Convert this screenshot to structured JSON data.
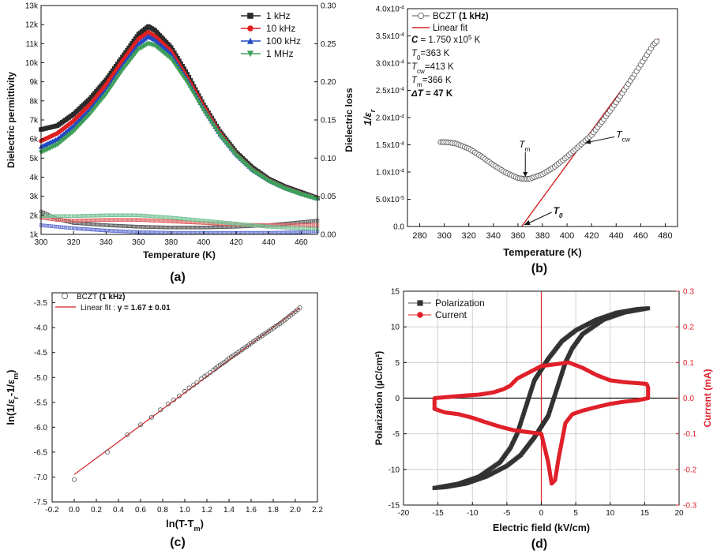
{
  "chart_data": [
    {
      "id": "a",
      "type": "line",
      "panel_label": "(a)",
      "xlabel": "Temperature (K)",
      "ylabel": "Dielectric permittivity",
      "y2label": "Dielectric loss",
      "xlim": [
        300,
        470
      ],
      "ylim": [
        1000,
        13000
      ],
      "y2lim": [
        0,
        0.3
      ],
      "xticks": [
        "300",
        "320",
        "340",
        "360",
        "380",
        "400",
        "420",
        "440",
        "460"
      ],
      "yticks": [
        "1k",
        "2k",
        "3k",
        "4k",
        "5k",
        "6k",
        "7k",
        "8k",
        "9k",
        "10k",
        "11k",
        "12k",
        "13k"
      ],
      "y2ticks": [
        "0.00",
        "0.05",
        "0.10",
        "0.15",
        "0.20",
        "0.25",
        "0.30"
      ],
      "legend_position": "top-right",
      "permittivity_series": [
        {
          "name": "1 kHz",
          "color": "#2b2b2b",
          "marker": "square",
          "x": [
            300,
            310,
            320,
            330,
            340,
            350,
            360,
            366,
            370,
            380,
            390,
            400,
            410,
            420,
            430,
            440,
            450,
            460,
            470
          ],
          "values": [
            6500,
            6700,
            7300,
            8100,
            9100,
            10300,
            11500,
            11900,
            11700,
            10800,
            9400,
            7800,
            6400,
            5300,
            4500,
            3900,
            3500,
            3200,
            2900
          ]
        },
        {
          "name": "10 kHz",
          "color": "#e02020",
          "marker": "circle",
          "x": [
            300,
            310,
            320,
            330,
            340,
            350,
            360,
            366,
            370,
            380,
            390,
            400,
            410,
            420,
            430,
            440,
            450,
            460,
            470
          ],
          "values": [
            5900,
            6300,
            6950,
            7800,
            8850,
            10100,
            11250,
            11600,
            11400,
            10600,
            9200,
            7700,
            6300,
            5200,
            4400,
            3850,
            3450,
            3150,
            2900
          ]
        },
        {
          "name": "100 kHz",
          "color": "#2148c4",
          "marker": "triangle-up",
          "x": [
            300,
            310,
            320,
            330,
            340,
            350,
            360,
            366,
            370,
            380,
            390,
            400,
            410,
            420,
            430,
            440,
            450,
            460,
            470
          ],
          "values": [
            5600,
            6000,
            6700,
            7550,
            8600,
            9850,
            11000,
            11400,
            11200,
            10450,
            9100,
            7600,
            6250,
            5200,
            4400,
            3850,
            3450,
            3150,
            2900
          ]
        },
        {
          "name": "1 MHz",
          "color": "#3fa05a",
          "marker": "triangle-down",
          "x": [
            300,
            310,
            320,
            330,
            340,
            350,
            360,
            366,
            370,
            380,
            390,
            400,
            410,
            420,
            430,
            440,
            450,
            460,
            470
          ],
          "values": [
            5300,
            5700,
            6400,
            7300,
            8350,
            9600,
            10700,
            11000,
            10900,
            10200,
            8950,
            7500,
            6200,
            5150,
            4350,
            3800,
            3400,
            3100,
            2850
          ]
        }
      ],
      "loss_series": [
        {
          "name": "1 kHz",
          "color": "#555555",
          "x": [
            300,
            310,
            320,
            340,
            360,
            380,
            400,
            420,
            440,
            460,
            470
          ],
          "values": [
            0.03,
            0.02,
            0.015,
            0.012,
            0.01,
            0.009,
            0.009,
            0.01,
            0.012,
            0.016,
            0.018
          ]
        },
        {
          "name": "10 kHz",
          "color": "#e06060",
          "x": [
            300,
            310,
            320,
            340,
            360,
            380,
            400,
            420,
            440,
            460,
            470
          ],
          "values": [
            0.022,
            0.019,
            0.018,
            0.019,
            0.019,
            0.017,
            0.015,
            0.013,
            0.012,
            0.012,
            0.012
          ]
        },
        {
          "name": "100 kHz",
          "color": "#6070d0",
          "x": [
            300,
            310,
            320,
            340,
            360,
            380,
            400,
            420,
            440,
            460,
            470
          ],
          "values": [
            0.012,
            0.01,
            0.008,
            0.005,
            0.003,
            0.002,
            0.002,
            0.002,
            0.002,
            0.003,
            0.004
          ]
        },
        {
          "name": "1 MHz",
          "color": "#70c090",
          "x": [
            300,
            310,
            320,
            340,
            360,
            380,
            400,
            420,
            440,
            460,
            470
          ],
          "values": [
            0.024,
            0.024,
            0.024,
            0.025,
            0.025,
            0.022,
            0.018,
            0.014,
            0.01,
            0.008,
            0.007
          ]
        }
      ]
    },
    {
      "id": "b",
      "type": "scatter",
      "panel_label": "(b)",
      "xlabel": "Temperature (K)",
      "ylabel": "1/ε",
      "ylabel_sub": "r",
      "xlim": [
        270,
        490
      ],
      "ylim": [
        0,
        0.0004
      ],
      "xticks": [
        "280",
        "300",
        "320",
        "340",
        "360",
        "380",
        "400",
        "420",
        "440",
        "460",
        "480"
      ],
      "yticks": [
        "0.0",
        "5.0x10",
        "1.0x10",
        "1.5x10",
        "2.0x10",
        "2.5x10",
        "3.0x10",
        "3.5x10",
        "4.0x10"
      ],
      "ytick_exps": [
        "",
        "-5",
        "-4",
        "-4",
        "-4",
        "-4",
        "-4",
        "-4",
        "-4"
      ],
      "legend": [
        "BCZT (1 kHz)",
        "Linear fit"
      ],
      "params": [
        {
          "label": "C",
          "value": " = 1.750 x10",
          "exp": "5",
          "unit": " K"
        },
        {
          "label": "T",
          "sub": "0",
          "value": "=363 K"
        },
        {
          "label": "T",
          "sub": "cw",
          "value": "=413 K"
        },
        {
          "label": "T",
          "sub": "m",
          "value": "=366 K"
        },
        {
          "label": "ΔT",
          "value": " = 47 K"
        }
      ],
      "annotations": [
        {
          "text": "T",
          "sub": "m",
          "x": 366,
          "y": 8.7e-05
        },
        {
          "text": "T",
          "sub": "cw",
          "x": 413,
          "y": 0.000156
        },
        {
          "text": "T",
          "sub": "0",
          "x": 363,
          "y": 0
        }
      ],
      "data_series": {
        "name": "BCZT (1 kHz)",
        "color": "#555555",
        "x": [
          297,
          300,
          305,
          310,
          320,
          330,
          340,
          350,
          360,
          366,
          370,
          380,
          390,
          400,
          410,
          420,
          430,
          440,
          450,
          460,
          470,
          473
        ],
        "values": [
          0.000155,
          0.000155,
          0.000154,
          0.000152,
          0.000143,
          0.000129,
          0.000113,
          9.9e-05,
          8.9e-05,
          8.7e-05,
          8.8e-05,
          9.6e-05,
          0.00011,
          0.000128,
          0.000148,
          0.000168,
          0.000197,
          0.000228,
          0.000262,
          0.000297,
          0.000333,
          0.00034
        ]
      },
      "fit_series": {
        "name": "Linear fit",
        "color": "#d42020",
        "x": [
          363,
          475
        ],
        "values": [
          0,
          0.000345
        ]
      }
    },
    {
      "id": "c",
      "type": "scatter",
      "panel_label": "(c)",
      "xlabel": "ln(T-T",
      "xlabel_sub": "m",
      "xlabel_end": ")",
      "ylabel": "ln(1/ε",
      "ylabel_sub1": "r",
      "ylabel_mid": "-1/ε",
      "ylabel_sub2": "m",
      "ylabel_end": ")",
      "xlim": [
        -0.2,
        2.2
      ],
      "ylim": [
        -7.5,
        -3.3
      ],
      "xticks": [
        "-0.2",
        "0.0",
        "0.2",
        "0.4",
        "0.6",
        "0.8",
        "1.0",
        "1.2",
        "1.4",
        "1.6",
        "1.8",
        "2.0",
        "2.2"
      ],
      "yticks": [
        "-7.5",
        "-7.0",
        "-6.5",
        "-6.0",
        "-5.5",
        "-5.0",
        "-4.5",
        "-4.0",
        "-3.5"
      ],
      "legend": [
        "BCZT (1 kHz)",
        "Linear fit : γ = 1.67 ± 0.01"
      ],
      "legend_position": "top-left",
      "data_series": {
        "name": "BCZT (1 kHz)",
        "color": "#555555",
        "x": [
          0.0,
          0.3,
          0.48,
          0.6,
          0.7,
          0.78,
          0.85,
          0.9,
          0.95,
          1.0,
          1.04,
          1.08,
          1.11,
          1.15,
          1.18,
          1.2,
          1.23,
          1.26,
          1.28,
          1.3,
          1.32,
          1.34,
          1.36,
          1.38,
          1.4,
          1.42,
          1.44,
          1.46,
          1.48,
          1.5,
          1.52,
          1.54,
          1.56,
          1.58,
          1.6,
          1.62,
          1.64,
          1.66,
          1.68,
          1.7,
          1.72,
          1.74,
          1.76,
          1.78,
          1.8,
          1.82,
          1.84,
          1.86,
          1.88,
          1.9,
          1.92,
          1.94,
          1.96,
          1.98,
          2.0,
          2.02,
          2.04
        ],
        "values": [
          -7.05,
          -6.5,
          -6.15,
          -5.95,
          -5.8,
          -5.65,
          -5.53,
          -5.45,
          -5.37,
          -5.28,
          -5.21,
          -5.15,
          -5.1,
          -5.03,
          -4.98,
          -4.95,
          -4.9,
          -4.85,
          -4.82,
          -4.78,
          -4.75,
          -4.72,
          -4.69,
          -4.66,
          -4.62,
          -4.59,
          -4.56,
          -4.53,
          -4.5,
          -4.47,
          -4.44,
          -4.41,
          -4.38,
          -4.35,
          -4.31,
          -4.28,
          -4.25,
          -4.22,
          -4.19,
          -4.16,
          -4.13,
          -4.1,
          -4.07,
          -4.04,
          -4.01,
          -3.98,
          -3.95,
          -3.92,
          -3.89,
          -3.85,
          -3.82,
          -3.78,
          -3.75,
          -3.71,
          -3.68,
          -3.64,
          -3.6
        ]
      },
      "fit_series": {
        "name": "Linear fit",
        "color": "#d42020",
        "x": [
          0.0,
          2.04
        ],
        "values": [
          -6.95,
          -3.6
        ]
      }
    },
    {
      "id": "d",
      "type": "line",
      "panel_label": "(d)",
      "xlabel": "Electric field (kV/cm)",
      "ylabel": "Polarization (µC/cm²)",
      "y2label": "Current (mA)",
      "xlim": [
        -20,
        20
      ],
      "ylim": [
        -15,
        15
      ],
      "y2lim": [
        -0.3,
        0.3
      ],
      "xticks": [
        "-20",
        "-15",
        "-10",
        "-5",
        "0",
        "5",
        "10",
        "15",
        "20"
      ],
      "yticks": [
        "-15",
        "-10",
        "-5",
        "0",
        "5",
        "10",
        "15"
      ],
      "y2ticks": [
        "-0.3",
        "-0.2",
        "-0.1",
        "0.0",
        "0.1",
        "0.2",
        "0.3"
      ],
      "legend_position": "top-left",
      "grid": true,
      "colors": {
        "polarization": "#333333",
        "current": "#e0202a",
        "grid": "#c8c8c8"
      },
      "polarization_series": {
        "name": "Polarization",
        "x": [
          -15.5,
          -12,
          -9,
          -6,
          -4.5,
          -3.5,
          -2.5,
          -1,
          1,
          3,
          5,
          8,
          11,
          14,
          15.5,
          12,
          9,
          6,
          4.5,
          3.5,
          2.5,
          1,
          -1,
          -3,
          -5,
          -8,
          -11,
          -14,
          -15.5
        ],
        "values": [
          -12.6,
          -12.0,
          -11.0,
          -9.0,
          -7.0,
          -5.0,
          -2.0,
          2.5,
          5.5,
          8.0,
          9.5,
          11.0,
          12.0,
          12.5,
          12.6,
          12.0,
          11.0,
          9.0,
          7.0,
          5.0,
          2.0,
          -2.5,
          -5.5,
          -8.0,
          -9.5,
          -11.0,
          -12.0,
          -12.5,
          -12.6
        ]
      },
      "current_series": {
        "name": "Current",
        "x": [
          -15.5,
          -15.5,
          -12,
          -9,
          -7,
          -5.5,
          -4.5,
          -4,
          -3.5,
          -3,
          -2.5,
          -2,
          -1,
          0,
          2,
          4,
          6,
          8,
          10,
          12,
          14,
          15.3,
          15.5,
          15.5,
          14,
          12,
          10,
          8,
          6,
          4.5,
          3.5,
          3,
          2.5,
          2,
          1.5,
          1,
          0,
          -2,
          -4,
          -6,
          -8,
          -10,
          -12,
          -14,
          -15.5
        ],
        "values": [
          -0.03,
          0.0,
          0.006,
          0.01,
          0.016,
          0.025,
          0.035,
          0.045,
          0.055,
          0.06,
          0.065,
          0.07,
          0.08,
          0.09,
          0.095,
          0.1,
          0.085,
          0.065,
          0.05,
          0.045,
          0.042,
          0.04,
          0.03,
          0.0,
          -0.006,
          -0.01,
          -0.016,
          -0.025,
          -0.035,
          -0.045,
          -0.07,
          -0.12,
          -0.17,
          -0.23,
          -0.24,
          -0.18,
          -0.1,
          -0.095,
          -0.09,
          -0.08,
          -0.068,
          -0.055,
          -0.045,
          -0.04,
          -0.03
        ]
      }
    }
  ]
}
